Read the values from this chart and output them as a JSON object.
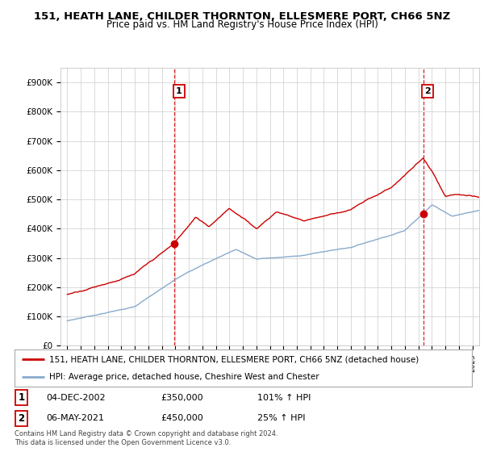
{
  "title": "151, HEATH LANE, CHILDER THORNTON, ELLESMERE PORT, CH66 5NZ",
  "subtitle": "Price paid vs. HM Land Registry's House Price Index (HPI)",
  "hpi_label": "HPI: Average price, detached house, Cheshire West and Chester",
  "property_label": "151, HEATH LANE, CHILDER THORNTON, ELLESMERE PORT, CH66 5NZ (detached house)",
  "line1_color": "#cc0000",
  "line2_color": "#88aacc",
  "sale1_date": "04-DEC-2002",
  "sale1_price": "£350,000",
  "sale1_hpi": "101% ↑ HPI",
  "sale2_date": "06-MAY-2021",
  "sale2_price": "£450,000",
  "sale2_hpi": "25% ↑ HPI",
  "footer": "Contains HM Land Registry data © Crown copyright and database right 2024.\nThis data is licensed under the Open Government Licence v3.0.",
  "ylim": [
    0,
    950000
  ],
  "yticks": [
    0,
    100000,
    200000,
    300000,
    400000,
    500000,
    600000,
    700000,
    800000,
    900000
  ],
  "ytick_labels": [
    "£0",
    "£100K",
    "£200K",
    "£300K",
    "£400K",
    "£500K",
    "£600K",
    "£700K",
    "£800K",
    "£900K"
  ],
  "sale1_year": 2002.92,
  "sale1_value": 350000,
  "sale2_year": 2021.35,
  "sale2_value": 450000,
  "xlim_min": 1994.5,
  "xlim_max": 2025.5,
  "background_color": "#ffffff",
  "grid_color": "#cccccc"
}
